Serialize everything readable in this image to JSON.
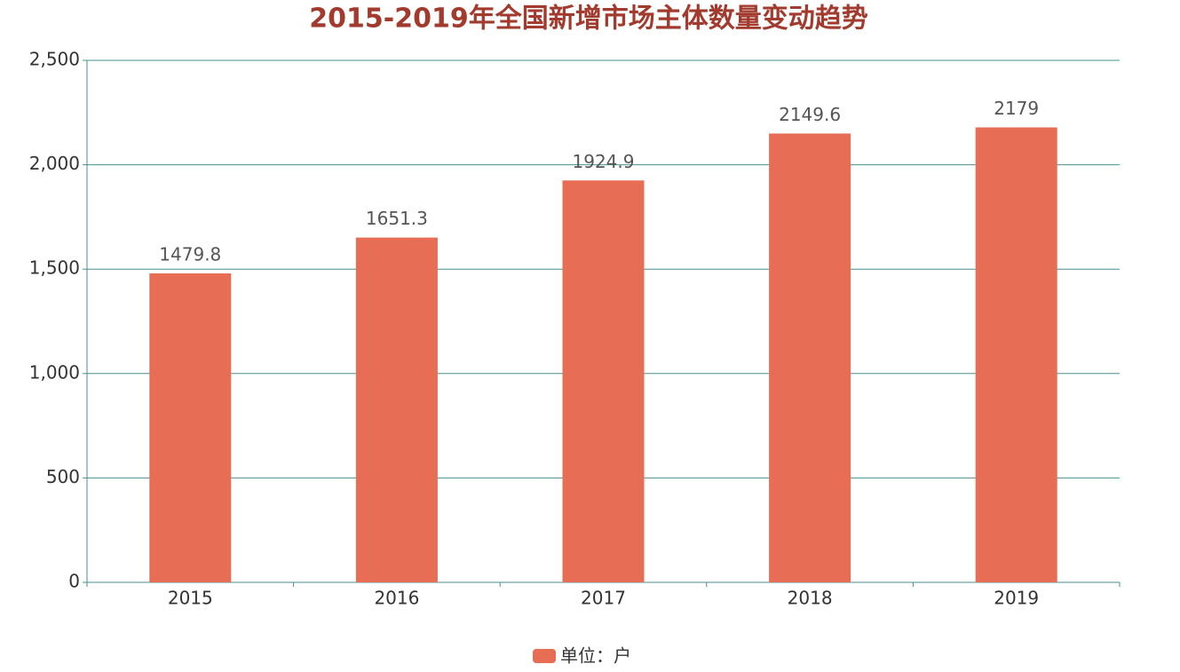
{
  "chart_data": {
    "type": "bar",
    "title": "2015-2019年全国新增市场主体数量变动趋势",
    "categories": [
      "2015",
      "2016",
      "2017",
      "2018",
      "2019"
    ],
    "series": [
      {
        "name": "单位：户",
        "color": "#e76d54",
        "values": [
          1479.8,
          1651.3,
          1924.9,
          2149.6,
          2179
        ]
      }
    ],
    "ylim": [
      0,
      2500
    ],
    "yticks": [
      0,
      500,
      {
        "value": 1000,
        "label": "1,000"
      },
      {
        "value": 1500,
        "label": "1,500"
      },
      {
        "value": 2000,
        "label": "2,000"
      },
      {
        "value": 2500,
        "label": "2,500"
      }
    ],
    "grid": true,
    "legend": "bottom"
  }
}
